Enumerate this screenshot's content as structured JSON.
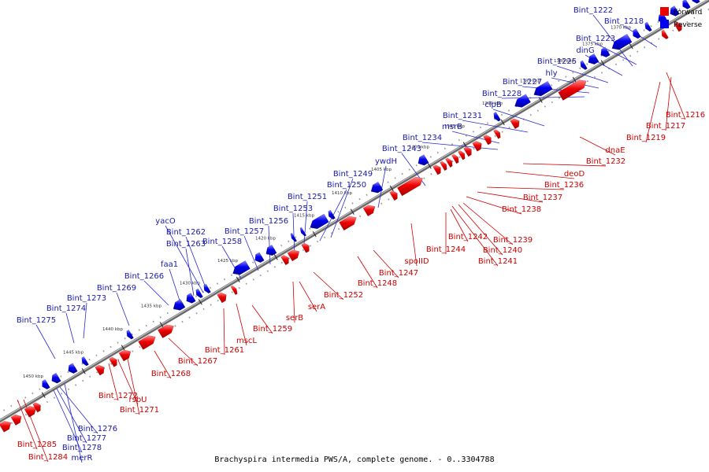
{
  "caption": "Brachyspira intermedia PWS/A, complete genome. - 0..3304788",
  "legend": {
    "forward": {
      "label": "Forward",
      "color": "#ee0000"
    },
    "reverse": {
      "label": "Reverse",
      "color": "#0000ee"
    }
  },
  "ticks": [
    "1370 kbp",
    "1375 kbp",
    "1380 kbp",
    "1385 kbp",
    "1390 kbp",
    "1395 kbp",
    "1400 kbp",
    "1405 kbp",
    "1410 kbp",
    "1415 kbp",
    "1420 kbp",
    "1425 kbp",
    "1430 kbp",
    "1435 kbp",
    "1440 kbp",
    "1445 kbp",
    "1450 kbp"
  ],
  "forward_labels": [
    "Bint_1216",
    "Bint_1217",
    "Bint_1219",
    "dnaE",
    "Bint_1232",
    "deoD",
    "Bint_1236",
    "Bint_1237",
    "Bint_1238",
    "Bint_1239",
    "Bint_1240",
    "Bint_1241",
    "Bint_1242",
    "Bint_1244",
    "spoIID",
    "Bint_1247",
    "Bint_1248",
    "Bint_1252",
    "serA",
    "serB",
    "Bint_1259",
    "mscL",
    "Bint_1261",
    "Bint_1267",
    "Bint_1268",
    "Bint_1272",
    "rsbU",
    "Bint_1271",
    "Bint_1285",
    "Bint_1284"
  ],
  "reverse_labels": [
    "Bint_1222",
    "Bint_1218",
    "Bint_1223",
    "dinG",
    "Bint_1225",
    "hly",
    "Bint_1227",
    "Bint_1228",
    "clpB",
    "Bint_1231",
    "msrB",
    "Bint_1234",
    "Bint_1243",
    "ywdH",
    "Bint_1249",
    "Bint_1250",
    "Bint_1251",
    "Bint_1253",
    "Bint_1256",
    "Bint_1257",
    "Bint_1258",
    "yacO",
    "Bint_1262",
    "Bint_1263",
    "faa1",
    "Bint_1266",
    "Bint_1269",
    "Bint_1273",
    "Bint_1274",
    "Bint_1275",
    "Bint_1276",
    "Bint_1277",
    "Bint_1278",
    "merR"
  ]
}
